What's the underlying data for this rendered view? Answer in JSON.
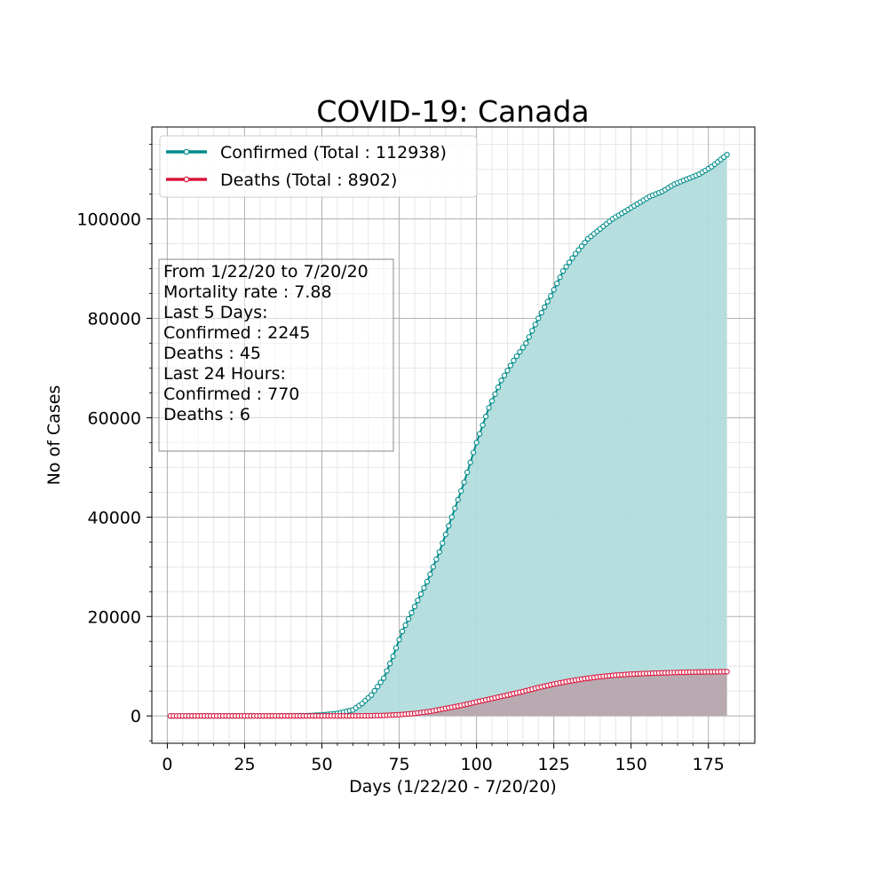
{
  "chart_data": {
    "type": "line",
    "title": "COVID-19: Canada",
    "xlabel": "Days (1/22/20 - 7/20/20)",
    "ylabel": "No of Cases",
    "xlim": [
      -5,
      190
    ],
    "ylim": [
      -5500,
      118500
    ],
    "xticks": [
      0,
      25,
      50,
      75,
      100,
      125,
      150,
      175
    ],
    "yticks": [
      0,
      20000,
      40000,
      60000,
      80000,
      100000
    ],
    "grid": true,
    "legend_position": "top-left",
    "series": [
      {
        "name": "Confirmed (Total : 112938)",
        "color": "#008b8b",
        "fill": "#b2dcdc",
        "anchors": [
          [
            1,
            0
          ],
          [
            30,
            5
          ],
          [
            45,
            50
          ],
          [
            50,
            200
          ],
          [
            55,
            500
          ],
          [
            60,
            1200
          ],
          [
            63,
            2500
          ],
          [
            66,
            4200
          ],
          [
            70,
            7600
          ],
          [
            73,
            12000
          ],
          [
            76,
            17000
          ],
          [
            80,
            22000
          ],
          [
            84,
            27000
          ],
          [
            88,
            33000
          ],
          [
            92,
            40000
          ],
          [
            96,
            47000
          ],
          [
            100,
            55000
          ],
          [
            104,
            62000
          ],
          [
            108,
            67500
          ],
          [
            112,
            71500
          ],
          [
            116,
            75000
          ],
          [
            120,
            80000
          ],
          [
            124,
            84500
          ],
          [
            128,
            89500
          ],
          [
            132,
            93000
          ],
          [
            136,
            96000
          ],
          [
            140,
            98000
          ],
          [
            144,
            100000
          ],
          [
            148,
            101500
          ],
          [
            152,
            103000
          ],
          [
            156,
            104500
          ],
          [
            160,
            105500
          ],
          [
            164,
            107000
          ],
          [
            168,
            108000
          ],
          [
            172,
            109000
          ],
          [
            176,
            110500
          ],
          [
            181,
            112938
          ]
        ]
      },
      {
        "name": "Deaths (Total : 8902)",
        "color": "#dc143c",
        "fill": "#b8a1a8",
        "anchors": [
          [
            1,
            0
          ],
          [
            60,
            10
          ],
          [
            65,
            30
          ],
          [
            70,
            100
          ],
          [
            75,
            250
          ],
          [
            80,
            500
          ],
          [
            85,
            900
          ],
          [
            90,
            1500
          ],
          [
            95,
            2100
          ],
          [
            100,
            2800
          ],
          [
            105,
            3500
          ],
          [
            110,
            4200
          ],
          [
            115,
            4900
          ],
          [
            120,
            5700
          ],
          [
            125,
            6400
          ],
          [
            130,
            7000
          ],
          [
            135,
            7500
          ],
          [
            140,
            7900
          ],
          [
            145,
            8200
          ],
          [
            150,
            8400
          ],
          [
            155,
            8550
          ],
          [
            160,
            8650
          ],
          [
            165,
            8750
          ],
          [
            170,
            8820
          ],
          [
            175,
            8870
          ],
          [
            181,
            8902
          ]
        ]
      }
    ],
    "annotation": [
      "From 1/22/20 to 7/20/20",
      "Mortality rate : 7.88",
      "Last 5 Days:",
      "Confirmed : 2245",
      "Deaths : 45",
      "Last 24 Hours:",
      "Confirmed : 770",
      "Deaths : 6"
    ]
  }
}
